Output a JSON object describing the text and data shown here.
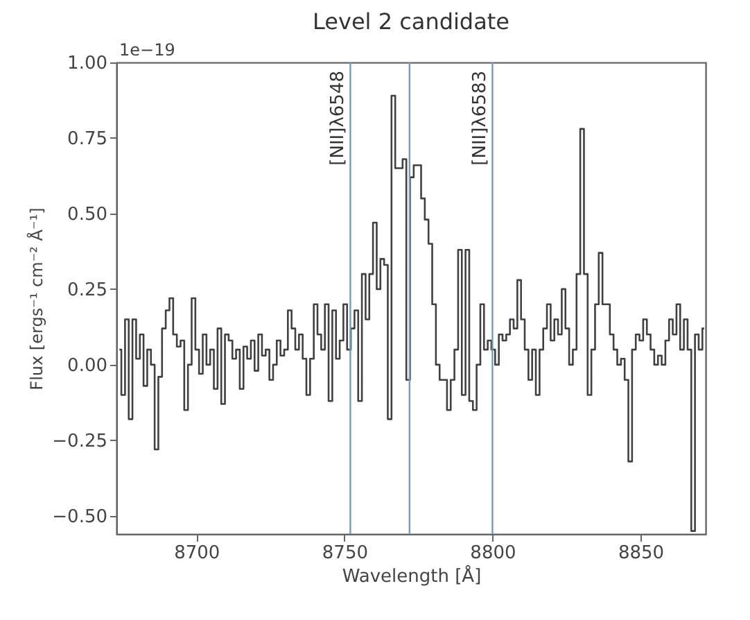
{
  "chart_data": {
    "type": "step",
    "title": "Level 2 candidate",
    "xlabel": "Wavelength [Å]",
    "ylabel": "Flux [ergs⁻¹ cm⁻² Å⁻¹]",
    "annotations": [
      "1e−19"
    ],
    "x": [
      8674.0,
      8675.3,
      8676.5,
      8677.8,
      8679.0,
      8680.3,
      8681.5,
      8682.8,
      8684.0,
      8685.3,
      8686.5,
      8687.8,
      8689.0,
      8690.3,
      8691.5,
      8692.8,
      8694.0,
      8695.3,
      8696.5,
      8697.8,
      8699.0,
      8700.3,
      8701.5,
      8702.8,
      8704.0,
      8705.3,
      8706.5,
      8707.8,
      8709.0,
      8710.3,
      8711.5,
      8712.8,
      8714.0,
      8715.3,
      8716.5,
      8717.8,
      8719.0,
      8720.3,
      8721.5,
      8722.8,
      8724.0,
      8725.3,
      8726.5,
      8727.8,
      8729.0,
      8730.3,
      8731.5,
      8732.8,
      8734.0,
      8735.3,
      8736.5,
      8737.8,
      8739.0,
      8740.3,
      8741.5,
      8742.8,
      8744.0,
      8745.3,
      8746.5,
      8747.8,
      8749.0,
      8750.3,
      8751.5,
      8752.8,
      8754.0,
      8755.3,
      8756.5,
      8757.8,
      8759.0,
      8760.3,
      8761.5,
      8762.8,
      8764.0,
      8765.3,
      8766.5,
      8767.8,
      8769.0,
      8770.3,
      8771.5,
      8772.8,
      8774.0,
      8775.3,
      8776.5,
      8777.8,
      8779.0,
      8780.3,
      8781.5,
      8782.8,
      8784.0,
      8785.3,
      8786.5,
      8787.8,
      8789.0,
      8790.3,
      8791.5,
      8792.8,
      8794.0,
      8795.3,
      8796.5,
      8797.8,
      8799.0,
      8800.3,
      8801.5,
      8802.8,
      8804.0,
      8805.3,
      8806.5,
      8807.8,
      8809.0,
      8810.3,
      8811.5,
      8812.8,
      8814.0,
      8815.3,
      8816.5,
      8817.8,
      8819.0,
      8820.3,
      8821.5,
      8822.8,
      8824.0,
      8825.3,
      8826.5,
      8827.8,
      8829.0,
      8830.3,
      8831.5,
      8832.8,
      8834.0,
      8835.3,
      8836.5,
      8837.8,
      8839.0,
      8840.3,
      8841.5,
      8842.8,
      8844.0,
      8845.3,
      8846.5,
      8847.8,
      8849.0,
      8850.3,
      8851.5,
      8852.8,
      8854.0,
      8855.3,
      8856.5,
      8857.8,
      8859.0,
      8860.3,
      8861.5,
      8862.8,
      8864.0,
      8865.3,
      8866.5,
      8867.8,
      8869.0,
      8870.3,
      8871.5
    ],
    "series": [
      {
        "color": "#404040",
        "values": [
          0.05,
          -0.1,
          0.15,
          -0.18,
          0.15,
          0.02,
          0.1,
          -0.07,
          0.05,
          0.0,
          -0.28,
          -0.04,
          0.12,
          0.18,
          0.22,
          0.1,
          0.06,
          0.08,
          -0.15,
          0.0,
          0.22,
          0.05,
          -0.03,
          0.1,
          0.0,
          0.05,
          -0.08,
          0.12,
          -0.13,
          0.1,
          0.08,
          0.02,
          0.05,
          -0.08,
          0.06,
          0.02,
          0.08,
          -0.02,
          0.1,
          0.03,
          0.05,
          -0.05,
          0.0,
          0.08,
          0.03,
          0.05,
          0.18,
          0.12,
          0.05,
          0.1,
          0.02,
          -0.1,
          0.02,
          0.2,
          0.1,
          0.05,
          0.2,
          -0.12,
          0.18,
          0.02,
          0.08,
          0.2,
          0.05,
          0.12,
          0.18,
          -0.12,
          0.3,
          0.15,
          0.3,
          0.47,
          0.25,
          0.35,
          0.33,
          -0.18,
          0.89,
          0.65,
          0.65,
          0.68,
          -0.05,
          0.62,
          0.66,
          0.66,
          0.55,
          0.48,
          0.4,
          0.2,
          0.0,
          -0.05,
          -0.05,
          -0.15,
          -0.05,
          0.05,
          0.38,
          -0.1,
          0.38,
          -0.12,
          -0.15,
          0.0,
          0.2,
          0.05,
          0.08,
          0.05,
          0.0,
          0.1,
          0.08,
          0.1,
          0.15,
          0.12,
          0.28,
          0.15,
          0.05,
          -0.05,
          0.05,
          -0.1,
          0.05,
          0.12,
          0.2,
          0.08,
          0.15,
          0.1,
          0.25,
          0.12,
          0.0,
          0.05,
          0.3,
          0.78,
          0.3,
          -0.1,
          0.05,
          0.2,
          0.37,
          0.2,
          0.2,
          0.1,
          0.05,
          0.0,
          0.02,
          -0.05,
          -0.32,
          0.05,
          0.1,
          0.08,
          0.15,
          0.1,
          0.05,
          0.0,
          0.03,
          0.0,
          0.08,
          0.15,
          0.1,
          0.2,
          0.05,
          0.15,
          0.05,
          -0.55,
          0.1,
          0.05,
          0.12
        ]
      }
    ],
    "xlim": [
      8673,
      8872
    ],
    "xticks": [
      8700,
      8750,
      8800,
      8850
    ],
    "ylim": [
      -0.56,
      1.0
    ],
    "yticks": [
      {
        "value": -0.5,
        "label": "−0.50"
      },
      {
        "value": -0.25,
        "label": "−0.25"
      },
      {
        "value": 0,
        "label": "0.00"
      },
      {
        "value": 0.25,
        "label": "0.25"
      },
      {
        "value": 0.5,
        "label": "0.50"
      },
      {
        "value": 0.75,
        "label": "0.75"
      },
      {
        "value": 1.0,
        "label": "1.00"
      }
    ],
    "ref_lines": [
      {
        "axis": "x",
        "value": 8752,
        "label": "[NII]λ6548",
        "color": "#6f9dbf"
      },
      {
        "axis": "x",
        "value": 8772,
        "label": null,
        "color": "#6f9dbf"
      },
      {
        "axis": "x",
        "value": 8800,
        "label": "[NII]λ6583",
        "color": "#6f9dbf"
      }
    ],
    "grid": false,
    "line_style": "solid",
    "marker": "none"
  }
}
